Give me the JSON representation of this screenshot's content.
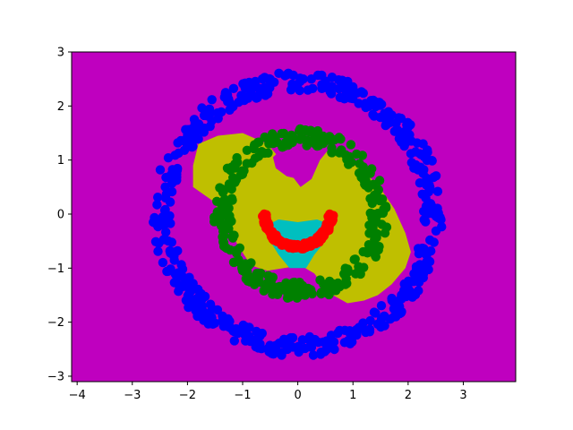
{
  "chart_data": {
    "type": "scatter",
    "title": "",
    "xlabel": "",
    "ylabel": "",
    "xlim": [
      -4.1,
      3.95
    ],
    "ylim": [
      -3.1,
      3.0
    ],
    "xticks": [
      -4,
      -3,
      -2,
      -1,
      0,
      1,
      2,
      3
    ],
    "yticks": [
      -3,
      -2,
      -1,
      0,
      1,
      2,
      3
    ],
    "xtick_labels": [
      "−4",
      "−3",
      "−2",
      "−1",
      "0",
      "1",
      "2",
      "3"
    ],
    "ytick_labels": [
      "−3",
      "−2",
      "−1",
      "0",
      "1",
      "2",
      "3"
    ],
    "grid": false,
    "legend": "none",
    "background_region_color": "#bf00bf",
    "decision_regions": [
      {
        "color": "#bfbf00",
        "polygon": [
          [
            -1.8,
            1.3
          ],
          [
            -1.45,
            1.45
          ],
          [
            -1.0,
            1.5
          ],
          [
            -0.55,
            1.3
          ],
          [
            -0.3,
            1.0
          ],
          [
            -0.1,
            0.7
          ],
          [
            0.05,
            0.5
          ],
          [
            0.25,
            0.65
          ],
          [
            0.4,
            1.0
          ],
          [
            0.6,
            1.25
          ],
          [
            0.9,
            1.0
          ],
          [
            1.25,
            0.75
          ],
          [
            1.55,
            0.4
          ],
          [
            1.75,
            0.1
          ],
          [
            1.95,
            -0.35
          ],
          [
            2.05,
            -0.7
          ],
          [
            1.95,
            -1.0
          ],
          [
            1.7,
            -1.3
          ],
          [
            1.45,
            -1.5
          ],
          [
            1.2,
            -1.6
          ],
          [
            0.9,
            -1.65
          ],
          [
            0.55,
            -1.45
          ],
          [
            0.3,
            -1.1
          ],
          [
            0.05,
            -0.95
          ],
          [
            -0.25,
            -1.0
          ],
          [
            -0.55,
            -1.05
          ],
          [
            -0.85,
            -0.95
          ],
          [
            -1.1,
            -0.55
          ],
          [
            -1.3,
            -0.1
          ],
          [
            -1.55,
            0.25
          ],
          [
            -1.9,
            0.5
          ],
          [
            -1.9,
            0.9
          ]
        ]
      },
      {
        "color": "#bf00bf",
        "polygon": [
          [
            -0.45,
            1.05
          ],
          [
            -0.25,
            1.25
          ],
          [
            0.0,
            1.2
          ],
          [
            0.2,
            1.05
          ],
          [
            0.15,
            0.8
          ],
          [
            0.0,
            0.65
          ],
          [
            -0.2,
            0.7
          ],
          [
            -0.4,
            0.85
          ]
        ]
      },
      {
        "color": "#00bfbf",
        "polygon": [
          [
            -0.55,
            -0.2
          ],
          [
            -0.35,
            -0.1
          ],
          [
            0.0,
            -0.15
          ],
          [
            0.35,
            -0.1
          ],
          [
            0.6,
            -0.2
          ],
          [
            0.5,
            -0.5
          ],
          [
            0.3,
            -0.75
          ],
          [
            0.15,
            -1.0
          ],
          [
            -0.15,
            -1.0
          ],
          [
            -0.35,
            -0.75
          ],
          [
            -0.5,
            -0.5
          ]
        ]
      }
    ],
    "series": [
      {
        "color": "#0000ff",
        "shape": "ring",
        "center": [
          0.0,
          0.0
        ],
        "radius": 2.45,
        "radius_jitter": 0.18,
        "count": 500
      },
      {
        "color": "#008000",
        "shape": "ring",
        "center": [
          0.05,
          0.0
        ],
        "radius": 1.42,
        "radius_jitter": 0.16,
        "count": 320
      },
      {
        "color": "#ff0000",
        "shape": "arc",
        "center": [
          0.0,
          0.0
        ],
        "radius": 0.6,
        "radius_jitter": 0.05,
        "angle_range_deg": [
          180,
          360
        ],
        "count": 150
      }
    ]
  }
}
